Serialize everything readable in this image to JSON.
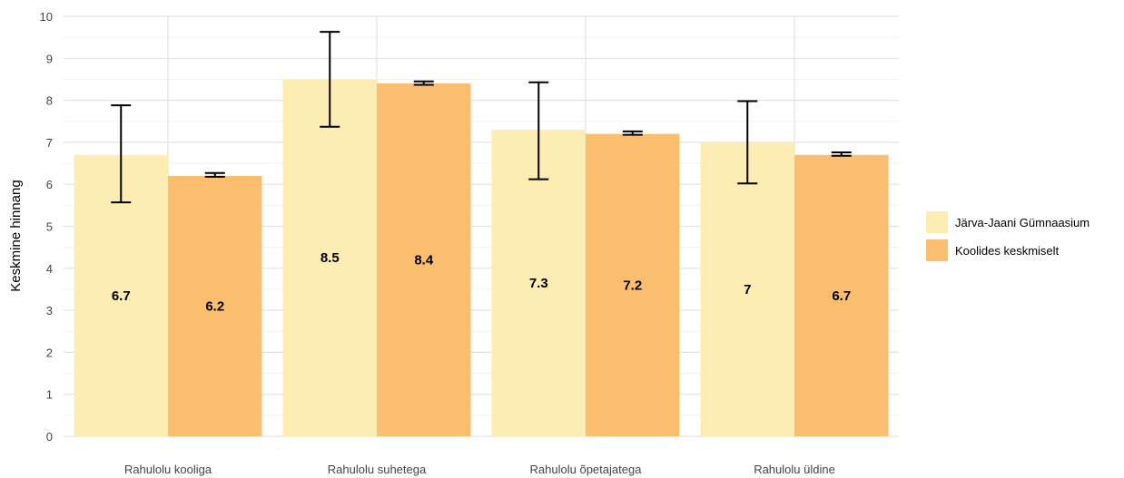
{
  "chart_data": {
    "type": "bar",
    "title": "",
    "xlabel": "",
    "ylabel": "Keskmine hinnang",
    "ylim": [
      0,
      10
    ],
    "yticks": [
      0,
      1,
      2,
      3,
      4,
      5,
      6,
      7,
      8,
      9,
      10
    ],
    "grid": true,
    "legend_position": "right",
    "categories": [
      "Rahulolu kooliga",
      "Rahulolu suhetega",
      "Rahulolu õpetajatega",
      "Rahulolu üldine"
    ],
    "series": [
      {
        "name": "Järva-Jaani Gümnaasium",
        "color": "#FDEDB3",
        "values": [
          6.7,
          8.5,
          7.3,
          7.0
        ],
        "labels": [
          "6.7",
          "8.5",
          "7.3",
          "7"
        ],
        "error_low": [
          5.57,
          7.37,
          6.12,
          6.02
        ],
        "error_high": [
          7.88,
          9.63,
          8.43,
          7.98
        ]
      },
      {
        "name": "Koolides keskmiselt",
        "color": "#FBBE6F",
        "values": [
          6.2,
          8.4,
          7.2,
          6.7
        ],
        "labels": [
          "6.2",
          "8.4",
          "7.2",
          "6.7"
        ],
        "error_low": [
          6.18,
          8.37,
          7.18,
          6.68
        ],
        "error_high": [
          6.27,
          8.45,
          7.26,
          6.76
        ]
      }
    ]
  }
}
